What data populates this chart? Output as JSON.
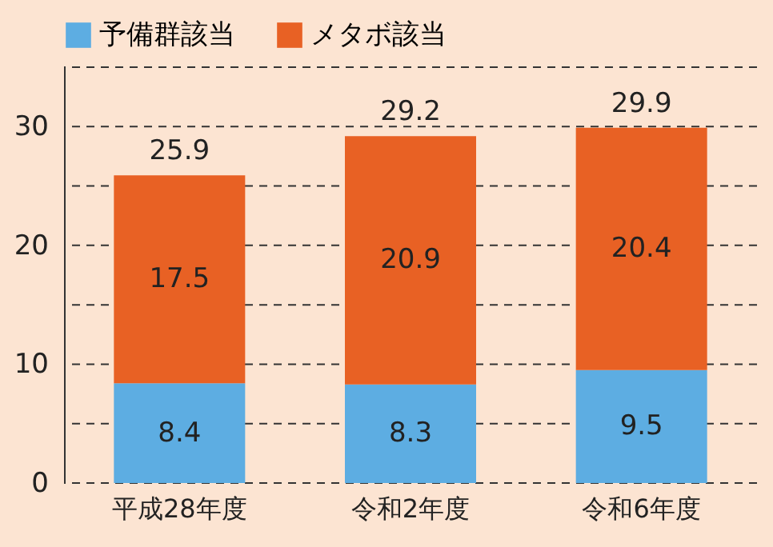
{
  "chart_data": {
    "type": "bar",
    "stacked": true,
    "categories": [
      "平成28年度",
      "令和2年度",
      "令和6年度"
    ],
    "series": [
      {
        "name": "予備群該当",
        "color": "#5dade2",
        "values": [
          8.4,
          8.3,
          9.5
        ]
      },
      {
        "name": "メタボ該当",
        "color": "#e86124",
        "values": [
          17.5,
          20.9,
          20.4
        ]
      }
    ],
    "totals": [
      "25.9",
      "29.2",
      "29.9"
    ],
    "data_labels": true,
    "ylim": [
      0,
      35
    ],
    "yticks": [
      0,
      {
        "value": 5,
        "label": null
      },
      10,
      {
        "value": 15,
        "label": null
      },
      20,
      {
        "value": 25,
        "label": null
      },
      30,
      {
        "value": 35,
        "label": null
      }
    ],
    "grid": "y",
    "legend": "top"
  }
}
